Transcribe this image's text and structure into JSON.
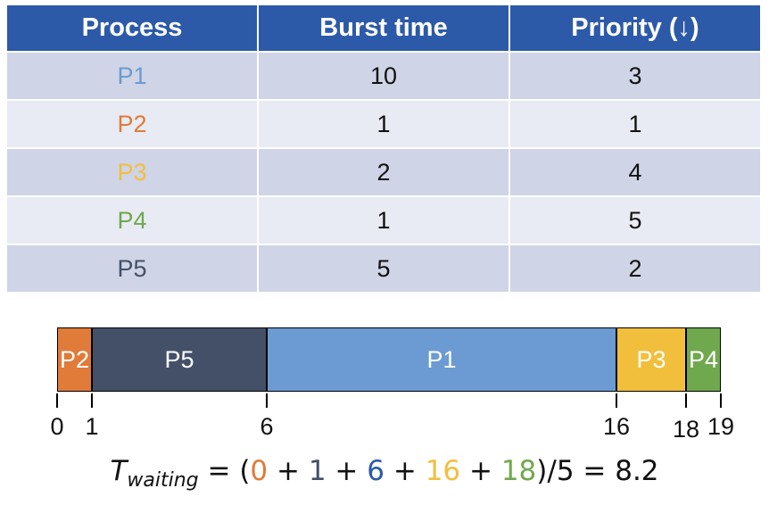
{
  "table": {
    "headers": [
      "Process",
      "Burst time",
      "Priority (↓)"
    ],
    "rows": [
      {
        "process": "P1",
        "burst": "10",
        "priority": "3",
        "color": "#6b9bd2"
      },
      {
        "process": "P2",
        "burst": "1",
        "priority": "1",
        "color": "#e07b39"
      },
      {
        "process": "P3",
        "burst": "2",
        "priority": "4",
        "color": "#f2bf3d"
      },
      {
        "process": "P4",
        "burst": "1",
        "priority": "5",
        "color": "#70a84e"
      },
      {
        "process": "P5",
        "burst": "5",
        "priority": "2",
        "color": "#445068"
      }
    ]
  },
  "gantt": {
    "segments": [
      {
        "label": "P2",
        "start": 0,
        "end": 1,
        "color": "#e07b39"
      },
      {
        "label": "P5",
        "start": 1,
        "end": 6,
        "color": "#445068"
      },
      {
        "label": "P1",
        "start": 6,
        "end": 16,
        "color": "#6b9bd2"
      },
      {
        "label": "P3",
        "start": 16,
        "end": 18,
        "color": "#f2bf3d"
      },
      {
        "label": "P4",
        "start": 18,
        "end": 19,
        "color": "#70a84e"
      }
    ],
    "ticks": [
      "0",
      "1",
      "6",
      "16",
      "18",
      "19"
    ],
    "total": 19
  },
  "formula": {
    "symbol": "T",
    "subscript": "waiting",
    "eq": " = (",
    "terms": [
      {
        "value": "0",
        "color": "#e07b39"
      },
      {
        "value": "1",
        "color": "#445068"
      },
      {
        "value": "6",
        "color": "#2c5aa8"
      },
      {
        "value": "16",
        "color": "#f2bf3d"
      },
      {
        "value": "18",
        "color": "#70a84e"
      }
    ],
    "plus": " + ",
    "tail": ")/5 = 8.2"
  }
}
